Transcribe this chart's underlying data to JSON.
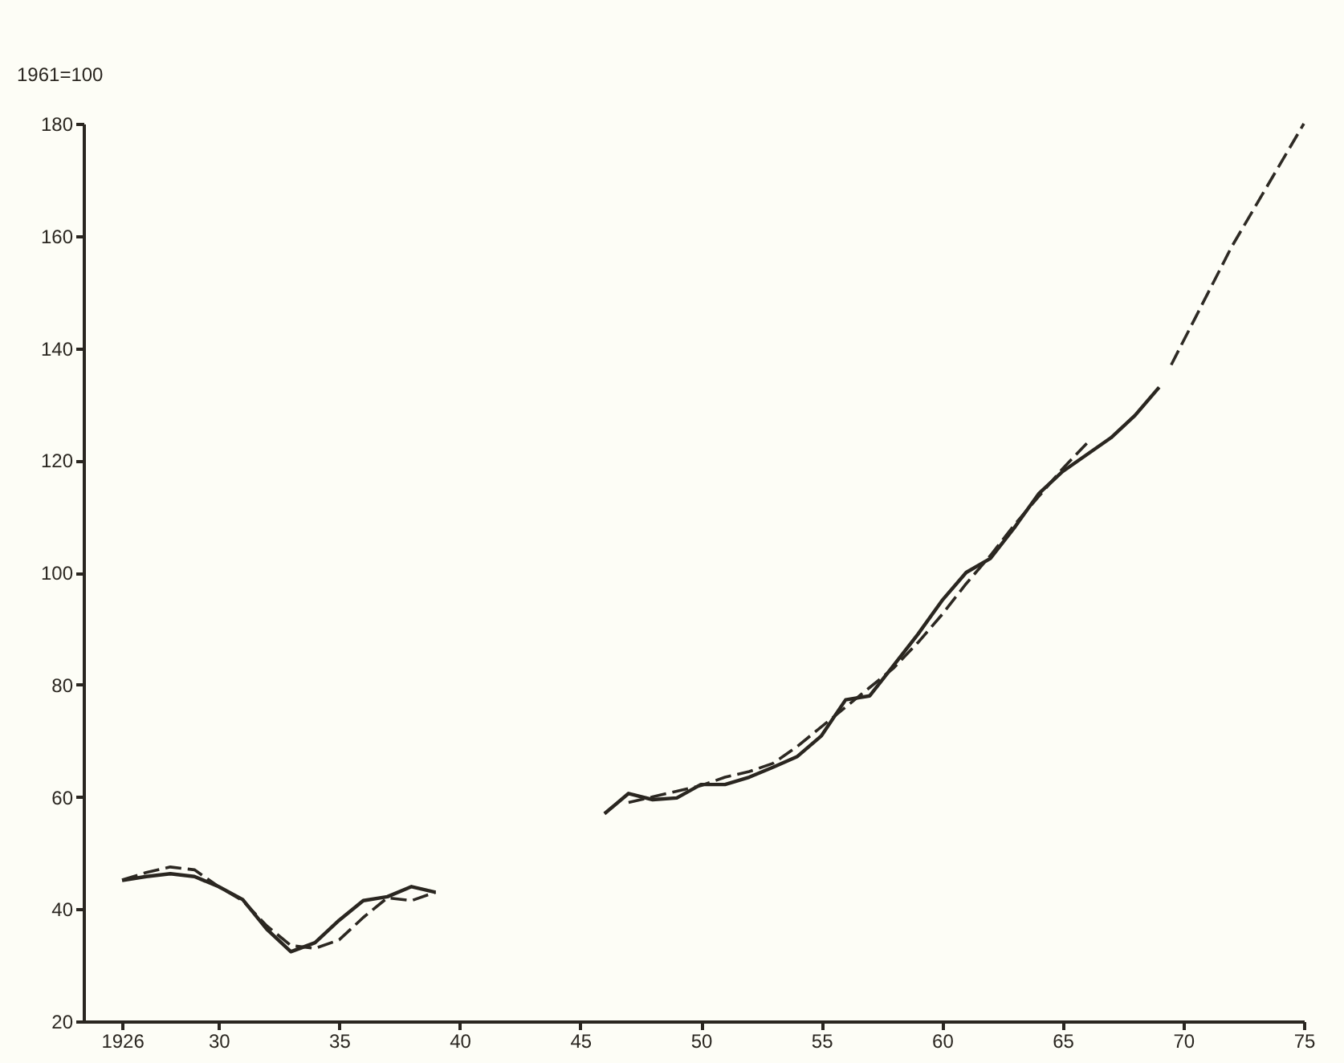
{
  "chart_data": {
    "type": "line",
    "ylabel": "1961=100",
    "xlim": [
      1924.4,
      1975
    ],
    "ylim": [
      20,
      180
    ],
    "xticks": [
      1926,
      {
        "value": 1930,
        "label": "30"
      },
      {
        "value": 1935,
        "label": "35"
      },
      {
        "value": 1940,
        "label": "40"
      },
      {
        "value": 1945,
        "label": "45"
      },
      {
        "value": 1950,
        "label": "50"
      },
      {
        "value": 1955,
        "label": "55"
      },
      {
        "value": 1960,
        "label": "60"
      },
      {
        "value": 1965,
        "label": "65"
      },
      {
        "value": 1970,
        "label": "70"
      },
      {
        "value": 1975,
        "label": "75"
      }
    ],
    "yticks": [
      20,
      40,
      60,
      80,
      100,
      120,
      140,
      160,
      180
    ],
    "series": [
      {
        "color": "#2a2620",
        "line_style": "solid",
        "x": [
          1926,
          1927,
          1928,
          1929,
          1930,
          1931,
          1932,
          1933,
          1934,
          1935,
          1936,
          1937,
          1938,
          1939,
          1940,
          1945,
          1946,
          1947,
          1948,
          1949,
          1950,
          1951,
          1952,
          1953,
          1954,
          1955,
          1956,
          1957,
          1958,
          1959,
          1960,
          1961,
          1962,
          1963,
          1964,
          1965,
          1966,
          1967,
          1968,
          1969
        ],
        "values": [
          45.1,
          45.8,
          46.3,
          45.8,
          44,
          41.7,
          36.4,
          32.4,
          34,
          38,
          41.5,
          42.2,
          44,
          43,
          null,
          null,
          57,
          60.6,
          59.5,
          59.8,
          62.2,
          62.2,
          63.5,
          65.3,
          67.2,
          70.9,
          77.3,
          78,
          83.5,
          89,
          95,
          100,
          102.5,
          108,
          114,
          118,
          121,
          124,
          128,
          133
        ]
      },
      {
        "color": "#2c2822",
        "line_style": "dashed",
        "x": [
          1926,
          1927,
          1928,
          1929,
          1930,
          1931,
          1932,
          1933,
          1934,
          1935,
          1936,
          1937,
          1938,
          1939,
          1940,
          1945,
          1947,
          1948,
          1949,
          1950,
          1951,
          1952,
          1953,
          1954,
          1955,
          1956,
          1957,
          1958,
          1959,
          1960,
          1961,
          1962,
          1963,
          1964,
          1965,
          1966
        ],
        "values": [
          45.2,
          46.5,
          47.5,
          47,
          44,
          41.5,
          37,
          33.5,
          33,
          34.5,
          38.5,
          42,
          41.5,
          43,
          null,
          null,
          59,
          60,
          61,
          62,
          63.5,
          64.5,
          66,
          69,
          72.5,
          76,
          79.5,
          83,
          87.5,
          92.5,
          98,
          103,
          108.5,
          113.5,
          118.5,
          123
        ]
      },
      {
        "color": "#2e2a24",
        "line_style": "dashed",
        "x": [
          1969.5,
          1972,
          1975
        ],
        "values": [
          137,
          158,
          180
        ]
      }
    ]
  }
}
